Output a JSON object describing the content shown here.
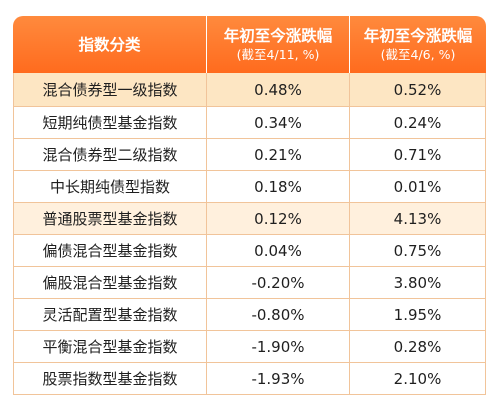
{
  "table": {
    "headers": [
      {
        "main": "指数分类",
        "sub": ""
      },
      {
        "main": "年初至今涨跌幅",
        "sub": "(截至4/11, %)"
      },
      {
        "main": "年初至今涨跌幅",
        "sub": "(截至4/6, %)"
      }
    ],
    "rows": [
      {
        "name": "混合债券型一级指数",
        "v1": "0.48%",
        "v2": "0.52%",
        "highlight": true
      },
      {
        "name": "短期纯债型基金指数",
        "v1": "0.34%",
        "v2": "0.24%",
        "highlight": false
      },
      {
        "name": "混合债券型二级指数",
        "v1": "0.21%",
        "v2": "0.71%",
        "highlight": false
      },
      {
        "name": "中长期纯债型指数",
        "v1": "0.18%",
        "v2": "0.01%",
        "highlight": false
      },
      {
        "name": "普通股票型基金指数",
        "v1": "0.12%",
        "v2": "4.13%",
        "highlight": true
      },
      {
        "name": "偏债混合型基金指数",
        "v1": "0.04%",
        "v2": "0.75%",
        "highlight": false
      },
      {
        "name": "偏股混合型基金指数",
        "v1": "-0.20%",
        "v2": "3.80%",
        "highlight": false
      },
      {
        "name": "灵活配置型基金指数",
        "v1": "-0.80%",
        "v2": "1.95%",
        "highlight": false
      },
      {
        "name": "平衡混合型基金指数",
        "v1": "-1.90%",
        "v2": "0.28%",
        "highlight": false
      },
      {
        "name": "股票指数型基金指数",
        "v1": "-1.93%",
        "v2": "2.10%",
        "highlight": false
      }
    ]
  },
  "colors": {
    "header_bg": "#ff7a2a",
    "highlight_row_1": "#fde6c3",
    "highlight_row_2": "#fff0dd",
    "border": "#f1c49a"
  }
}
